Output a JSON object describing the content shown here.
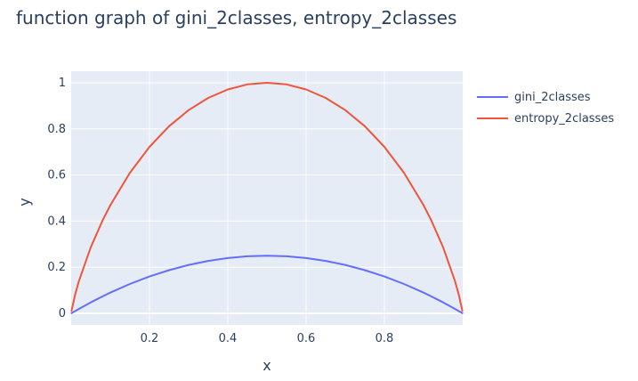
{
  "chart_data": {
    "type": "line",
    "title": "function graph of gini_2classes, entropy_2classes",
    "xlabel": "x",
    "ylabel": "y",
    "xlim": [
      0,
      1
    ],
    "ylim": [
      -0.05,
      1.05
    ],
    "x_ticks": [
      "0.2",
      "0.4",
      "0.6",
      "0.8"
    ],
    "y_ticks": [
      "0",
      "0.2",
      "0.4",
      "0.6",
      "0.8",
      "1"
    ],
    "grid": true,
    "legend_position": "top-right",
    "x": [
      0.001,
      0.01,
      0.02,
      0.05,
      0.08,
      0.1,
      0.15,
      0.2,
      0.25,
      0.3,
      0.35,
      0.4,
      0.45,
      0.5,
      0.55,
      0.6,
      0.65,
      0.7,
      0.75,
      0.8,
      0.85,
      0.9,
      0.92,
      0.95,
      0.98,
      0.99,
      0.999
    ],
    "series": [
      {
        "name": "gini_2classes",
        "color": "#636efa",
        "values": [
          0.001,
          0.0099,
          0.0196,
          0.0475,
          0.0736,
          0.09,
          0.1275,
          0.16,
          0.1875,
          0.21,
          0.2275,
          0.24,
          0.2475,
          0.25,
          0.2475,
          0.24,
          0.2275,
          0.21,
          0.1875,
          0.16,
          0.1275,
          0.09,
          0.0736,
          0.0475,
          0.0196,
          0.0099,
          0.001
        ]
      },
      {
        "name": "entropy_2classes",
        "color": "#ef553b",
        "values": [
          0.0114,
          0.0808,
          0.1414,
          0.2864,
          0.4022,
          0.469,
          0.6098,
          0.7219,
          0.8113,
          0.8813,
          0.9341,
          0.971,
          0.9928,
          1.0,
          0.9928,
          0.971,
          0.9341,
          0.8813,
          0.8113,
          0.7219,
          0.6098,
          0.469,
          0.4022,
          0.2864,
          0.1414,
          0.0808,
          0.0114
        ]
      }
    ]
  }
}
